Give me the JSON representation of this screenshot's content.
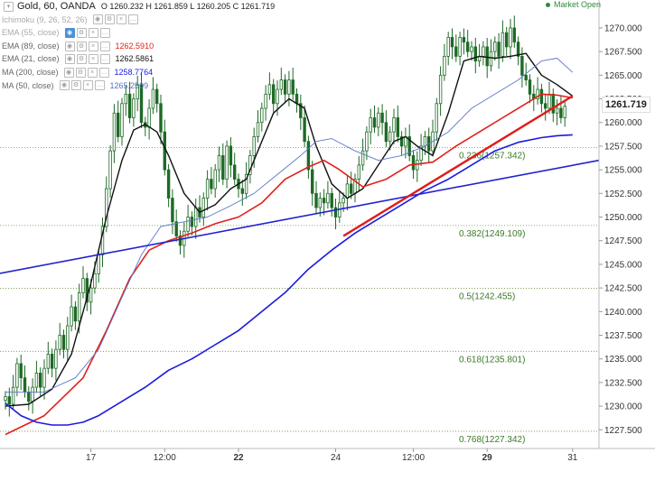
{
  "header": {
    "title": "Gold, 60, OANDA",
    "ohlc": "O 1260.232  H 1261.859  L 1260.205  C 1261.719",
    "market_status": "Market Open"
  },
  "indicators": [
    {
      "label": "Ichimoku (9, 26, 52, 26)",
      "value": "",
      "color": "#aaaaaa",
      "faded": true
    },
    {
      "label": "EMA (55, close)",
      "value": "",
      "color": "#aaaaaa",
      "faded": true
    },
    {
      "label": "EMA (89, close)",
      "value": "1262.5910",
      "color": "#e0201b",
      "faded": false
    },
    {
      "label": "EMA (21, close)",
      "value": "1262.5861",
      "color": "#111111",
      "faded": false
    },
    {
      "label": "MA (200, close)",
      "value": "1258.7764",
      "color": "#1a1ae0",
      "faded": false
    },
    {
      "label": "MA (50, close)",
      "value": "1265.2509",
      "color": "#5570c8",
      "faded": false
    }
  ],
  "last_price": "1261.719",
  "chart_data": {
    "type": "line",
    "title": "Gold, 60, OANDA",
    "xlabel": "",
    "ylabel": "",
    "ylim": [
      1226.0,
      1272.0
    ],
    "y_ticks": [
      "1227.500",
      "1230.000",
      "1232.500",
      "1235.000",
      "1237.500",
      "1240.000",
      "1242.500",
      "1245.000",
      "1247.500",
      "1250.000",
      "1252.500",
      "1255.000",
      "1257.500",
      "1260.000",
      "1262.500",
      "1265.000",
      "1267.500",
      "1270.000"
    ],
    "x_ticks": [
      {
        "label": "17",
        "bold": false,
        "idx": 22
      },
      {
        "label": "12:00",
        "bold": false,
        "idx": 41
      },
      {
        "label": "22",
        "bold": true,
        "idx": 60
      },
      {
        "label": "24",
        "bold": false,
        "idx": 85
      },
      {
        "label": "12:00",
        "bold": false,
        "idx": 105
      },
      {
        "label": "29",
        "bold": true,
        "idx": 124
      },
      {
        "label": "31",
        "bold": false,
        "idx": 146
      }
    ],
    "fibonacci": [
      {
        "label": "0.236(1257.342)",
        "value": 1257.342
      },
      {
        "label": "0.382(1249.109)",
        "value": 1249.109
      },
      {
        "label": "0.5(1242.455)",
        "value": 1242.455
      },
      {
        "label": "0.618(1235.801)",
        "value": 1235.801
      },
      {
        "label": "0.768(1227.342)",
        "value": 1227.342
      }
    ],
    "close": [
      1231.0,
      1230.2,
      1232.0,
      1234.5,
      1233.0,
      1231.5,
      1230.5,
      1232.0,
      1233.5,
      1232.0,
      1234.0,
      1235.5,
      1234.0,
      1236.0,
      1237.5,
      1236.0,
      1238.5,
      1240.5,
      1239.0,
      1242.0,
      1243.5,
      1241.0,
      1242.5,
      1244.0,
      1246.0,
      1249.0,
      1253.0,
      1257.0,
      1261.0,
      1258.5,
      1262.0,
      1263.0,
      1260.5,
      1262.5,
      1264.0,
      1260.0,
      1259.5,
      1261.5,
      1263.5,
      1262.0,
      1259.0,
      1255.0,
      1252.0,
      1249.5,
      1248.0,
      1247.0,
      1248.5,
      1250.0,
      1249.0,
      1251.0,
      1250.0,
      1252.0,
      1254.0,
      1253.0,
      1255.0,
      1256.5,
      1254.0,
      1257.5,
      1255.5,
      1254.0,
      1253.0,
      1252.5,
      1254.5,
      1256.5,
      1258.5,
      1260.0,
      1261.5,
      1263.0,
      1264.0,
      1262.0,
      1263.5,
      1264.5,
      1263.0,
      1264.5,
      1263.0,
      1262.0,
      1260.5,
      1258.0,
      1255.0,
      1252.5,
      1251.0,
      1252.0,
      1251.5,
      1252.5,
      1251.0,
      1250.0,
      1251.5,
      1252.0,
      1253.5,
      1252.5,
      1254.0,
      1255.5,
      1257.0,
      1259.0,
      1260.5,
      1259.5,
      1261.0,
      1260.0,
      1258.0,
      1259.0,
      1260.5,
      1258.5,
      1257.5,
      1258.5,
      1256.5,
      1255.0,
      1256.0,
      1257.5,
      1258.5,
      1257.0,
      1259.0,
      1262.0,
      1265.0,
      1267.0,
      1269.0,
      1268.0,
      1267.0,
      1269.0,
      1268.5,
      1267.5,
      1268.0,
      1266.5,
      1267.0,
      1268.0,
      1266.0,
      1267.5,
      1268.5,
      1267.0,
      1269.5,
      1268.0,
      1270.0,
      1268.5,
      1267.0,
      1265.0,
      1264.5,
      1263.0,
      1262.5,
      1263.5,
      1262.0,
      1261.5,
      1263.0,
      1261.0,
      1261.5,
      1260.5,
      1261.719
    ],
    "series": [
      {
        "name": "EMA (21, close)",
        "color": "#111111",
        "width": 1.4,
        "points": [
          [
            0,
            1230.0
          ],
          [
            6,
            1230.2
          ],
          [
            12,
            1231.8
          ],
          [
            17,
            1235.5
          ],
          [
            22,
            1243.0
          ],
          [
            26,
            1250.0
          ],
          [
            30,
            1256.0
          ],
          [
            33,
            1259.2
          ],
          [
            36,
            1259.8
          ],
          [
            39,
            1259.0
          ],
          [
            42,
            1256.5
          ],
          [
            46,
            1252.5
          ],
          [
            50,
            1250.5
          ],
          [
            54,
            1251.3
          ],
          [
            58,
            1253.0
          ],
          [
            62,
            1254.0
          ],
          [
            65,
            1257.0
          ],
          [
            69,
            1261.0
          ],
          [
            73,
            1262.5
          ],
          [
            77,
            1261.5
          ],
          [
            80,
            1257.5
          ],
          [
            84,
            1253.5
          ],
          [
            88,
            1252.0
          ],
          [
            92,
            1253.0
          ],
          [
            96,
            1255.5
          ],
          [
            100,
            1258.0
          ],
          [
            103,
            1258.5
          ],
          [
            106,
            1257.5
          ],
          [
            110,
            1256.5
          ],
          [
            114,
            1261.0
          ],
          [
            118,
            1266.5
          ],
          [
            122,
            1267.0
          ],
          [
            126,
            1266.8
          ],
          [
            130,
            1267.0
          ],
          [
            134,
            1267.3
          ],
          [
            138,
            1265.0
          ],
          [
            142,
            1264.0
          ],
          [
            146,
            1262.8
          ]
        ]
      },
      {
        "name": "EMA (89, close)",
        "color": "#e0201b",
        "width": 1.6,
        "points": [
          [
            0,
            1227.0
          ],
          [
            10,
            1229.0
          ],
          [
            20,
            1233.0
          ],
          [
            26,
            1238.0
          ],
          [
            32,
            1243.5
          ],
          [
            37,
            1246.5
          ],
          [
            42,
            1247.5
          ],
          [
            48,
            1248.3
          ],
          [
            54,
            1249.3
          ],
          [
            60,
            1250.0
          ],
          [
            66,
            1251.5
          ],
          [
            72,
            1254.0
          ],
          [
            78,
            1255.3
          ],
          [
            82,
            1256.0
          ],
          [
            86,
            1255.0
          ],
          [
            92,
            1253.2
          ],
          [
            98,
            1254.0
          ],
          [
            104,
            1255.5
          ],
          [
            110,
            1255.8
          ],
          [
            116,
            1257.5
          ],
          [
            122,
            1259.0
          ],
          [
            128,
            1260.5
          ],
          [
            134,
            1262.0
          ],
          [
            138,
            1263.0
          ],
          [
            142,
            1262.9
          ],
          [
            146,
            1262.6
          ]
        ]
      },
      {
        "name": "MA (50, close)",
        "color": "#5b78c9",
        "width": 0.9,
        "points": [
          [
            0,
            1231.5
          ],
          [
            10,
            1231.5
          ],
          [
            18,
            1233.0
          ],
          [
            24,
            1236.0
          ],
          [
            30,
            1241.5
          ],
          [
            35,
            1246.0
          ],
          [
            40,
            1249.0
          ],
          [
            46,
            1249.5
          ],
          [
            52,
            1250.0
          ],
          [
            58,
            1251.2
          ],
          [
            64,
            1252.5
          ],
          [
            70,
            1254.5
          ],
          [
            76,
            1256.5
          ],
          [
            80,
            1258.0
          ],
          [
            84,
            1258.3
          ],
          [
            90,
            1257.0
          ],
          [
            96,
            1256.0
          ],
          [
            102,
            1256.5
          ],
          [
            108,
            1257.5
          ],
          [
            114,
            1259.0
          ],
          [
            120,
            1261.5
          ],
          [
            126,
            1263.0
          ],
          [
            132,
            1264.5
          ],
          [
            138,
            1266.5
          ],
          [
            142,
            1266.8
          ],
          [
            146,
            1265.3
          ]
        ]
      },
      {
        "name": "MA (200, close)",
        "color": "#1a1ae0",
        "width": 1.6,
        "points": [
          [
            0,
            1230.3
          ],
          [
            4,
            1229.0
          ],
          [
            8,
            1228.3
          ],
          [
            12,
            1228.0
          ],
          [
            16,
            1228.0
          ],
          [
            20,
            1228.3
          ],
          [
            24,
            1229.0
          ],
          [
            30,
            1230.5
          ],
          [
            36,
            1232.0
          ],
          [
            42,
            1233.8
          ],
          [
            48,
            1235.0
          ],
          [
            54,
            1236.5
          ],
          [
            60,
            1238.0
          ],
          [
            66,
            1240.0
          ],
          [
            72,
            1242.0
          ],
          [
            78,
            1244.5
          ],
          [
            84,
            1246.5
          ],
          [
            90,
            1248.3
          ],
          [
            96,
            1249.8
          ],
          [
            102,
            1251.3
          ],
          [
            108,
            1252.8
          ],
          [
            114,
            1254.0
          ],
          [
            120,
            1255.5
          ],
          [
            126,
            1257.0
          ],
          [
            132,
            1257.9
          ],
          [
            138,
            1258.4
          ],
          [
            142,
            1258.6
          ],
          [
            146,
            1258.7
          ]
        ]
      }
    ],
    "trendlines": [
      {
        "name": "blue-trendline",
        "color": "#2222cc",
        "from": [
          -2,
          1244.0
        ],
        "to": [
          154,
          1256.0
        ]
      },
      {
        "name": "red-trendline",
        "color": "#e01b1b",
        "from": [
          87,
          1248.0
        ],
        "to": [
          146,
          1262.8
        ]
      }
    ],
    "grid": false,
    "legend": "top-left"
  }
}
